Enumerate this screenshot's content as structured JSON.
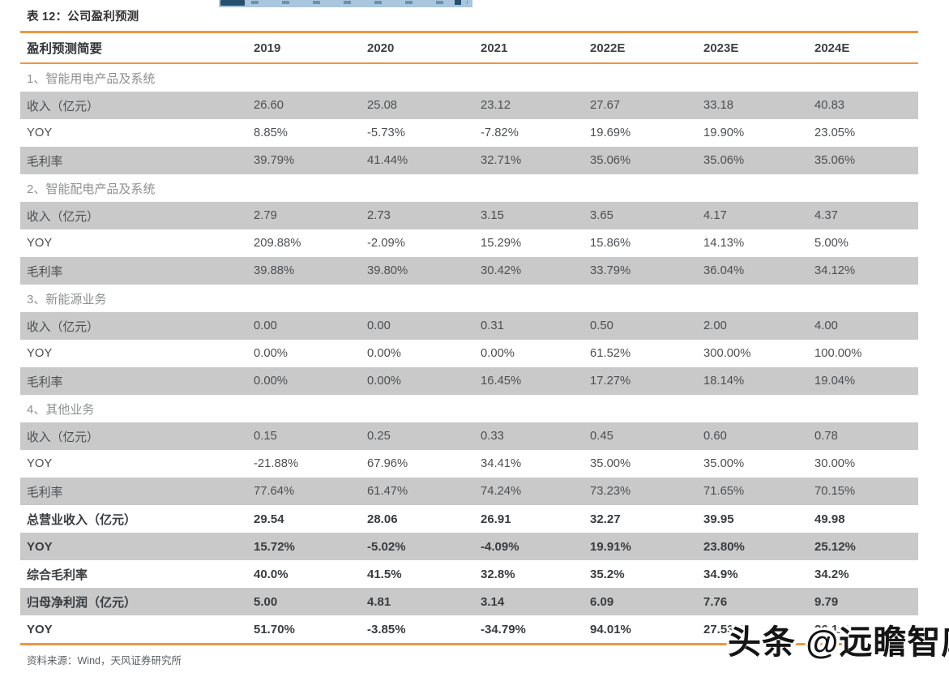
{
  "page": {
    "title": "表 12：公司盈利预测",
    "source": "资料来源：Wind，天风证券研究所",
    "watermark": "头条 @远瞻智库"
  },
  "colors": {
    "accent_orange": "#ED9740",
    "row_gray": "#c9c9c9",
    "top_strip_blue": "#a9c6de",
    "watermark_text": "#151515"
  },
  "table": {
    "header": {
      "label": "盈利预测简要",
      "years": [
        "2019",
        "2020",
        "2021",
        "2022E",
        "2023E",
        "2024E"
      ]
    },
    "sections": [
      {
        "title": "1、智能用电产品及系统",
        "rows": [
          {
            "label": "收入（亿元）",
            "values": [
              "26.60",
              "25.08",
              "23.12",
              "27.67",
              "33.18",
              "40.83"
            ]
          },
          {
            "label": "YOY",
            "values": [
              "8.85%",
              "-5.73%",
              "-7.82%",
              "19.69%",
              "19.90%",
              "23.05%"
            ]
          },
          {
            "label": "毛利率",
            "values": [
              "39.79%",
              "41.44%",
              "32.71%",
              "35.06%",
              "35.06%",
              "35.06%"
            ]
          }
        ]
      },
      {
        "title": "2、智能配电产品及系统",
        "rows": [
          {
            "label": "收入（亿元）",
            "values": [
              "2.79",
              "2.73",
              "3.15",
              "3.65",
              "4.17",
              "4.37"
            ]
          },
          {
            "label": "YOY",
            "values": [
              "209.88%",
              "-2.09%",
              "15.29%",
              "15.86%",
              "14.13%",
              "5.00%"
            ]
          },
          {
            "label": "毛利率",
            "values": [
              "39.88%",
              "39.80%",
              "30.42%",
              "33.79%",
              "36.04%",
              "34.12%"
            ]
          }
        ]
      },
      {
        "title": "3、新能源业务",
        "rows": [
          {
            "label": "收入（亿元）",
            "values": [
              "0.00",
              "0.00",
              "0.31",
              "0.50",
              "2.00",
              "4.00"
            ]
          },
          {
            "label": "YOY",
            "values": [
              "0.00%",
              "0.00%",
              "0.00%",
              "61.52%",
              "300.00%",
              "100.00%"
            ]
          },
          {
            "label": "毛利率",
            "values": [
              "0.00%",
              "0.00%",
              "16.45%",
              "17.27%",
              "18.14%",
              "19.04%"
            ]
          }
        ]
      },
      {
        "title": "4、其他业务",
        "rows": [
          {
            "label": "收入（亿元）",
            "values": [
              "0.15",
              "0.25",
              "0.33",
              "0.45",
              "0.60",
              "0.78"
            ]
          },
          {
            "label": "YOY",
            "values": [
              "-21.88%",
              "67.96%",
              "34.41%",
              "35.00%",
              "35.00%",
              "30.00%"
            ]
          },
          {
            "label": "毛利率",
            "values": [
              "77.64%",
              "61.47%",
              "74.24%",
              "73.23%",
              "71.65%",
              "70.15%"
            ]
          }
        ]
      }
    ],
    "summary_rows": [
      {
        "label": "总营业收入（亿元）",
        "values": [
          "29.54",
          "28.06",
          "26.91",
          "32.27",
          "39.95",
          "49.98"
        ]
      },
      {
        "label": "YOY",
        "values": [
          "15.72%",
          "-5.02%",
          "-4.09%",
          "19.91%",
          "23.80%",
          "25.12%"
        ]
      },
      {
        "label": "综合毛利率",
        "values": [
          "40.0%",
          "41.5%",
          "32.8%",
          "35.2%",
          "34.9%",
          "34.2%"
        ]
      },
      {
        "label": "归母净利润（亿元）",
        "values": [
          "5.00",
          "4.81",
          "3.14",
          "6.09",
          "7.76",
          "9.79"
        ]
      },
      {
        "label": "YOY",
        "values": [
          "51.70%",
          "-3.85%",
          "-34.79%",
          "94.01%",
          "27.53%",
          "26.11%"
        ]
      }
    ]
  }
}
